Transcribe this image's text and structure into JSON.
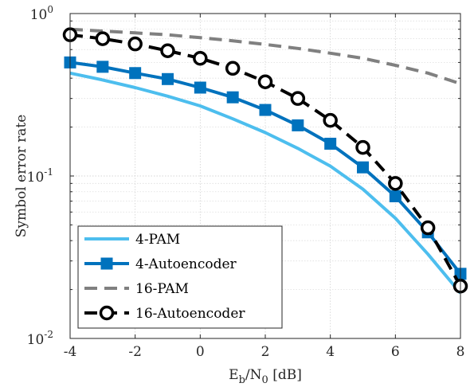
{
  "chart_data": {
    "type": "line",
    "xlabel": {
      "main": "E",
      "sub1": "b",
      "mid": "/N",
      "sub2": "0",
      "tail": " [dB]"
    },
    "ylabel": "Symbol error rate",
    "xlim": [
      -4,
      8
    ],
    "ylim": [
      0.01,
      1
    ],
    "yscale": "log",
    "grid": true,
    "legend_position": "bottom-left",
    "x_ticks": [
      -4,
      -2,
      0,
      2,
      4,
      6,
      8
    ],
    "x_tick_labels": [
      "-4",
      "-2",
      "0",
      "2",
      "4",
      "6",
      "8"
    ],
    "y_ticks": [
      {
        "value": 0.01,
        "base": "10",
        "exp": "-2"
      },
      {
        "value": 0.1,
        "base": "10",
        "exp": "-1"
      },
      {
        "value": 1,
        "base": "10",
        "exp": "0"
      }
    ],
    "series": [
      {
        "name": "4-PAM",
        "color": "#4DBEEE",
        "line": "solid",
        "marker": "none",
        "x": [
          -4,
          -3,
          -2,
          -1,
          0,
          1,
          2,
          3,
          4,
          5,
          6,
          7,
          8
        ],
        "y": [
          0.43,
          0.39,
          0.35,
          0.31,
          0.27,
          0.225,
          0.185,
          0.148,
          0.115,
          0.083,
          0.055,
          0.033,
          0.019
        ]
      },
      {
        "name": "4-Autoencoder",
        "color": "#0072BD",
        "line": "solid",
        "marker": "square",
        "x": [
          -4,
          -3,
          -2,
          -1,
          0,
          1,
          2,
          3,
          4,
          5,
          6,
          7,
          8
        ],
        "y": [
          0.5,
          0.47,
          0.43,
          0.395,
          0.35,
          0.305,
          0.255,
          0.205,
          0.158,
          0.113,
          0.075,
          0.045,
          0.025
        ]
      },
      {
        "name": "16-PAM",
        "color": "#808080",
        "line": "dashed",
        "marker": "none",
        "x": [
          -4,
          -3,
          -2,
          -1,
          0,
          1,
          2,
          3,
          4,
          5,
          6,
          7,
          8
        ],
        "y": [
          0.8,
          0.78,
          0.76,
          0.74,
          0.71,
          0.68,
          0.645,
          0.61,
          0.57,
          0.53,
          0.48,
          0.43,
          0.37
        ]
      },
      {
        "name": "16-Autoencoder",
        "color": "#000000",
        "line": "dashed",
        "marker": "circle",
        "x": [
          -4,
          -3,
          -2,
          -1,
          0,
          1,
          2,
          3,
          4,
          5,
          6,
          7,
          8
        ],
        "y": [
          0.74,
          0.7,
          0.65,
          0.59,
          0.53,
          0.46,
          0.38,
          0.3,
          0.22,
          0.15,
          0.09,
          0.048,
          0.021
        ]
      }
    ]
  }
}
